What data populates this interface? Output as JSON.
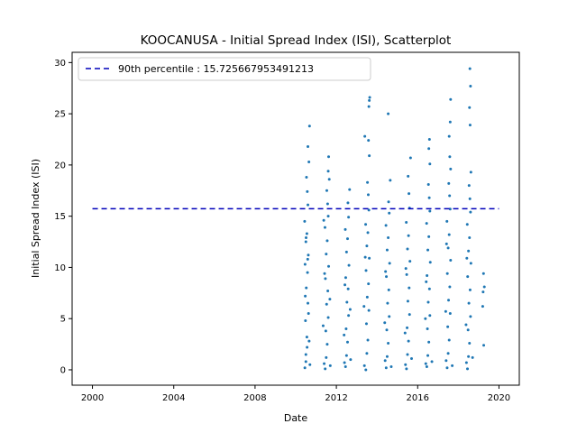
{
  "chart_data": {
    "type": "scatter",
    "title": "KOOCANUSA - Initial Spread Index (ISI), Scatterplot",
    "xlabel": "Date",
    "ylabel": "Initial Spread Index (ISI)",
    "xlim": [
      1999.0,
      2021.0
    ],
    "ylim": [
      -1.5,
      31.0
    ],
    "xticks": [
      2000,
      2004,
      2008,
      2012,
      2016,
      2020
    ],
    "yticks": [
      0,
      5,
      10,
      15,
      20,
      25,
      30
    ],
    "grid": false,
    "legend_position": "upper-left",
    "reference_line": {
      "label": "90th percentile : 15.725667953491213",
      "value": 15.725667953491213,
      "x_range": [
        2000,
        2020
      ],
      "style": "dashed",
      "color": "#0000bb"
    },
    "series": [
      {
        "color": "#1f77b4",
        "points": [
          [
            2010.45,
            0.2
          ],
          [
            2010.5,
            1.5
          ],
          [
            2010.55,
            3.2
          ],
          [
            2010.48,
            4.8
          ],
          [
            2010.6,
            6.5
          ],
          [
            2010.52,
            8.0
          ],
          [
            2010.58,
            9.5
          ],
          [
            2010.46,
            10.3
          ],
          [
            2010.62,
            11.2
          ],
          [
            2010.5,
            12.5
          ],
          [
            2010.55,
            13.3
          ],
          [
            2010.44,
            14.5
          ],
          [
            2010.6,
            16.1
          ],
          [
            2010.57,
            17.4
          ],
          [
            2010.53,
            18.8
          ],
          [
            2010.65,
            20.3
          ],
          [
            2010.6,
            21.8
          ],
          [
            2010.68,
            23.8
          ],
          [
            2010.5,
            0.8
          ],
          [
            2010.56,
            2.2
          ],
          [
            2010.63,
            5.5
          ],
          [
            2010.47,
            7.2
          ],
          [
            2010.59,
            10.8
          ],
          [
            2010.51,
            12.9
          ],
          [
            2010.7,
            0.5
          ],
          [
            2010.66,
            2.8
          ],
          [
            2011.45,
            0.1
          ],
          [
            2011.5,
            1.2
          ],
          [
            2011.55,
            2.5
          ],
          [
            2011.48,
            3.8
          ],
          [
            2011.6,
            5.1
          ],
          [
            2011.52,
            6.4
          ],
          [
            2011.58,
            7.7
          ],
          [
            2011.46,
            8.9
          ],
          [
            2011.62,
            10.1
          ],
          [
            2011.5,
            11.3
          ],
          [
            2011.55,
            12.6
          ],
          [
            2011.44,
            13.9
          ],
          [
            2011.6,
            15.0
          ],
          [
            2011.57,
            16.2
          ],
          [
            2011.53,
            17.5
          ],
          [
            2011.65,
            18.6
          ],
          [
            2011.6,
            19.4
          ],
          [
            2011.62,
            20.8
          ],
          [
            2011.4,
            0.6
          ],
          [
            2011.35,
            4.3
          ],
          [
            2011.42,
            9.4
          ],
          [
            2011.38,
            14.6
          ],
          [
            2011.7,
            0.4
          ],
          [
            2011.68,
            6.9
          ],
          [
            2012.45,
            0.3
          ],
          [
            2012.5,
            1.4
          ],
          [
            2012.55,
            2.7
          ],
          [
            2012.48,
            4.0
          ],
          [
            2012.6,
            5.3
          ],
          [
            2012.52,
            6.6
          ],
          [
            2012.58,
            7.9
          ],
          [
            2012.46,
            9.0
          ],
          [
            2012.62,
            10.2
          ],
          [
            2012.5,
            11.5
          ],
          [
            2012.55,
            12.8
          ],
          [
            2012.44,
            13.7
          ],
          [
            2012.6,
            14.9
          ],
          [
            2012.57,
            16.3
          ],
          [
            2012.65,
            17.6
          ],
          [
            2012.4,
            0.7
          ],
          [
            2012.38,
            3.4
          ],
          [
            2012.42,
            8.3
          ],
          [
            2012.7,
            1.0
          ],
          [
            2012.68,
            5.9
          ],
          [
            2013.45,
            0.0
          ],
          [
            2013.5,
            1.6
          ],
          [
            2013.55,
            2.9
          ],
          [
            2013.48,
            4.5
          ],
          [
            2013.6,
            5.8
          ],
          [
            2013.52,
            7.1
          ],
          [
            2013.58,
            8.4
          ],
          [
            2013.46,
            9.7
          ],
          [
            2013.62,
            10.9
          ],
          [
            2013.5,
            12.1
          ],
          [
            2013.55,
            13.4
          ],
          [
            2013.44,
            14.2
          ],
          [
            2013.6,
            15.6
          ],
          [
            2013.57,
            17.1
          ],
          [
            2013.53,
            18.3
          ],
          [
            2013.62,
            20.9
          ],
          [
            2013.58,
            22.4
          ],
          [
            2013.4,
            22.8
          ],
          [
            2013.6,
            25.7
          ],
          [
            2013.62,
            26.3
          ],
          [
            2013.64,
            26.6
          ],
          [
            2013.38,
            0.4
          ],
          [
            2013.36,
            6.2
          ],
          [
            2013.42,
            11.0
          ],
          [
            2014.45,
            0.2
          ],
          [
            2014.5,
            1.3
          ],
          [
            2014.55,
            2.6
          ],
          [
            2014.48,
            3.9
          ],
          [
            2014.6,
            5.2
          ],
          [
            2014.52,
            6.5
          ],
          [
            2014.58,
            7.8
          ],
          [
            2014.46,
            9.1
          ],
          [
            2014.62,
            10.4
          ],
          [
            2014.5,
            11.7
          ],
          [
            2014.55,
            12.9
          ],
          [
            2014.44,
            14.1
          ],
          [
            2014.6,
            15.3
          ],
          [
            2014.57,
            16.4
          ],
          [
            2014.65,
            18.5
          ],
          [
            2014.55,
            25.0
          ],
          [
            2014.4,
            0.9
          ],
          [
            2014.38,
            4.6
          ],
          [
            2014.42,
            9.6
          ],
          [
            2014.7,
            0.3
          ],
          [
            2015.45,
            0.1
          ],
          [
            2015.5,
            1.5
          ],
          [
            2015.55,
            2.8
          ],
          [
            2015.48,
            4.1
          ],
          [
            2015.6,
            5.4
          ],
          [
            2015.52,
            6.7
          ],
          [
            2015.58,
            8.0
          ],
          [
            2015.46,
            9.3
          ],
          [
            2015.62,
            10.6
          ],
          [
            2015.5,
            11.8
          ],
          [
            2015.55,
            13.1
          ],
          [
            2015.44,
            14.4
          ],
          [
            2015.6,
            15.8
          ],
          [
            2015.57,
            17.2
          ],
          [
            2015.53,
            18.9
          ],
          [
            2015.65,
            20.7
          ],
          [
            2015.4,
            0.5
          ],
          [
            2015.38,
            3.6
          ],
          [
            2015.42,
            9.9
          ],
          [
            2015.7,
            1.1
          ],
          [
            2016.45,
            0.3
          ],
          [
            2016.5,
            1.4
          ],
          [
            2016.55,
            2.7
          ],
          [
            2016.48,
            4.0
          ],
          [
            2016.6,
            5.3
          ],
          [
            2016.52,
            6.6
          ],
          [
            2016.58,
            7.9
          ],
          [
            2016.46,
            9.2
          ],
          [
            2016.62,
            10.5
          ],
          [
            2016.5,
            11.7
          ],
          [
            2016.55,
            13.0
          ],
          [
            2016.44,
            14.3
          ],
          [
            2016.6,
            15.5
          ],
          [
            2016.57,
            16.8
          ],
          [
            2016.53,
            18.1
          ],
          [
            2016.6,
            20.1
          ],
          [
            2016.55,
            21.6
          ],
          [
            2016.58,
            22.5
          ],
          [
            2016.4,
            0.6
          ],
          [
            2016.38,
            5.0
          ],
          [
            2016.42,
            8.6
          ],
          [
            2016.7,
            0.8
          ],
          [
            2017.45,
            0.2
          ],
          [
            2017.5,
            1.6
          ],
          [
            2017.55,
            2.9
          ],
          [
            2017.48,
            4.2
          ],
          [
            2017.6,
            5.5
          ],
          [
            2017.52,
            6.8
          ],
          [
            2017.58,
            8.1
          ],
          [
            2017.46,
            9.4
          ],
          [
            2017.62,
            10.7
          ],
          [
            2017.5,
            11.9
          ],
          [
            2017.55,
            13.2
          ],
          [
            2017.44,
            14.5
          ],
          [
            2017.6,
            15.7
          ],
          [
            2017.57,
            17.0
          ],
          [
            2017.53,
            18.2
          ],
          [
            2017.62,
            19.6
          ],
          [
            2017.58,
            20.8
          ],
          [
            2017.55,
            22.8
          ],
          [
            2017.6,
            24.2
          ],
          [
            2017.62,
            26.4
          ],
          [
            2017.4,
            0.9
          ],
          [
            2017.38,
            5.7
          ],
          [
            2017.42,
            12.3
          ],
          [
            2017.7,
            0.4
          ],
          [
            2018.45,
            0.1
          ],
          [
            2018.5,
            1.3
          ],
          [
            2018.55,
            2.6
          ],
          [
            2018.48,
            3.9
          ],
          [
            2018.6,
            5.2
          ],
          [
            2018.52,
            6.5
          ],
          [
            2018.58,
            7.8
          ],
          [
            2018.46,
            9.1
          ],
          [
            2018.62,
            10.4
          ],
          [
            2018.5,
            11.6
          ],
          [
            2018.55,
            12.9
          ],
          [
            2018.44,
            14.2
          ],
          [
            2018.6,
            15.4
          ],
          [
            2018.57,
            16.7
          ],
          [
            2018.53,
            18.0
          ],
          [
            2018.62,
            19.3
          ],
          [
            2018.58,
            23.9
          ],
          [
            2018.55,
            25.6
          ],
          [
            2018.6,
            27.7
          ],
          [
            2018.57,
            29.4
          ],
          [
            2018.4,
            0.7
          ],
          [
            2018.38,
            4.4
          ],
          [
            2018.42,
            10.9
          ],
          [
            2018.7,
            1.2
          ],
          [
            2019.25,
            2.4
          ],
          [
            2019.2,
            6.2
          ],
          [
            2019.22,
            7.6
          ],
          [
            2019.28,
            8.1
          ],
          [
            2019.24,
            9.4
          ]
        ]
      }
    ]
  }
}
